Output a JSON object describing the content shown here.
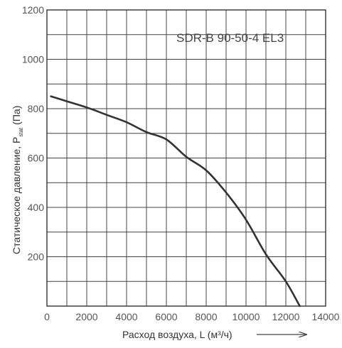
{
  "chart_data": {
    "type": "line",
    "title": "SDR-B 90-50-4 EL3",
    "xlabel": "Расход воздуха, L (м³/ч)",
    "ylabel_main": "Статическое давление, P",
    "ylabel_sub": "stat",
    "ylabel_unit": " (Па)",
    "xlim": [
      0,
      14000
    ],
    "ylim": [
      0,
      1200
    ],
    "x_ticks": [
      0,
      2000,
      4000,
      6000,
      8000,
      10000,
      12000,
      14000
    ],
    "y_ticks": [
      200,
      400,
      600,
      800,
      1000,
      1200
    ],
    "grid": true,
    "series": [
      {
        "x": [
          200,
          1000,
          2000,
          3000,
          4000,
          5000,
          6000,
          7000,
          8000,
          9000,
          10000,
          11000,
          12000,
          12700
        ],
        "y": [
          850,
          830,
          805,
          775,
          745,
          705,
          675,
          605,
          550,
          460,
          350,
          210,
          100,
          0
        ]
      }
    ]
  }
}
